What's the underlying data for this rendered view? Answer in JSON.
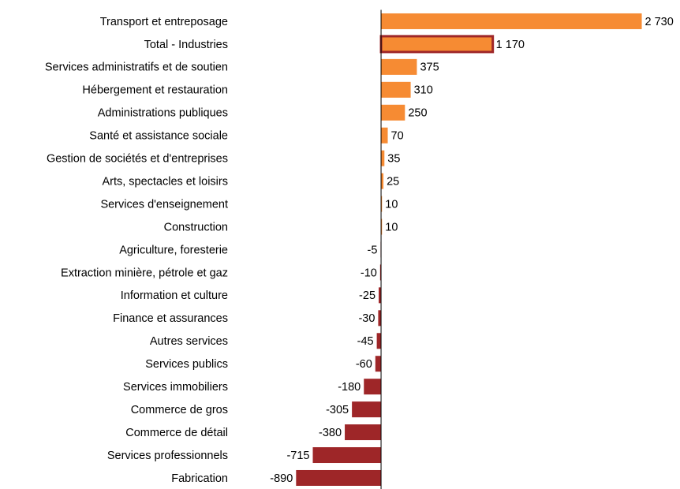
{
  "chart_data": {
    "type": "barh",
    "categories": [
      "Transport et entreposage",
      "Total - Industries",
      "Services administratifs et de soutien",
      "Hébergement et restauration",
      "Administrations publiques",
      "Santé et assistance sociale",
      "Gestion de sociétés et d'entreprises",
      "Arts, spectacles et loisirs",
      "Services d'enseignement",
      "Construction",
      "Agriculture, foresterie",
      "Extraction minière, pétrole et gaz",
      "Information et culture",
      "Finance et assurances",
      "Autres services",
      "Services publics",
      "Services immobiliers",
      "Commerce de gros",
      "Commerce de détail",
      "Services professionnels",
      "Fabrication"
    ],
    "values": [
      2730,
      1170,
      375,
      310,
      250,
      70,
      35,
      25,
      10,
      10,
      -5,
      -10,
      -25,
      -30,
      -45,
      -60,
      -180,
      -305,
      -380,
      -715,
      -890
    ],
    "value_labels": [
      "2 730",
      "1 170",
      "375",
      "310",
      "250",
      "70",
      "35",
      "25",
      "10",
      "10",
      "-5",
      "-10",
      "-25",
      "-30",
      "-45",
      "-60",
      "-180",
      "-305",
      "-380",
      "-715",
      "-890"
    ],
    "colors": [
      "#f68b33",
      "#f68b33",
      "#f68b33",
      "#f68b33",
      "#f68b33",
      "#f68b33",
      "#f68b33",
      "#f68b33",
      "#f68b33",
      "#f68b33",
      "#9e2628",
      "#9e2628",
      "#9e2628",
      "#9e2628",
      "#9e2628",
      "#9e2628",
      "#9e2628",
      "#9e2628",
      "#9e2628",
      "#9e2628",
      "#9e2628"
    ],
    "edgecolors": [
      null,
      "#9e2628",
      null,
      null,
      null,
      null,
      null,
      null,
      null,
      null,
      null,
      null,
      null,
      null,
      null,
      null,
      null,
      null,
      null,
      null,
      null
    ],
    "xlim": [
      -1000,
      2800
    ]
  }
}
